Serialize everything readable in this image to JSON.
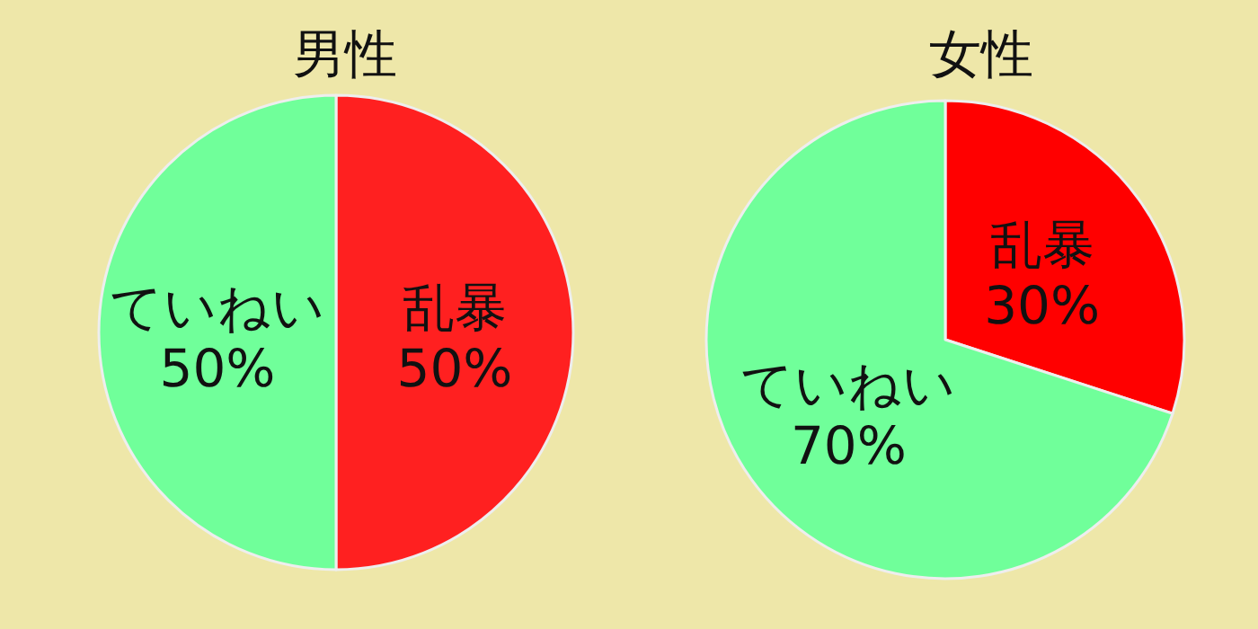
{
  "chart_data": [
    {
      "type": "pie",
      "title": "男性",
      "categories": [
        "乱暴",
        "ていねい"
      ],
      "values": [
        50,
        50
      ],
      "colors": [
        "#ff2020",
        "#70ff9a"
      ],
      "value_labels": [
        "50%",
        "50%"
      ]
    },
    {
      "type": "pie",
      "title": "女性",
      "categories": [
        "乱暴",
        "ていねい"
      ],
      "values": [
        30,
        70
      ],
      "colors": [
        "#ff0000",
        "#70ff9a"
      ],
      "value_labels": [
        "30%",
        "70%"
      ]
    }
  ]
}
